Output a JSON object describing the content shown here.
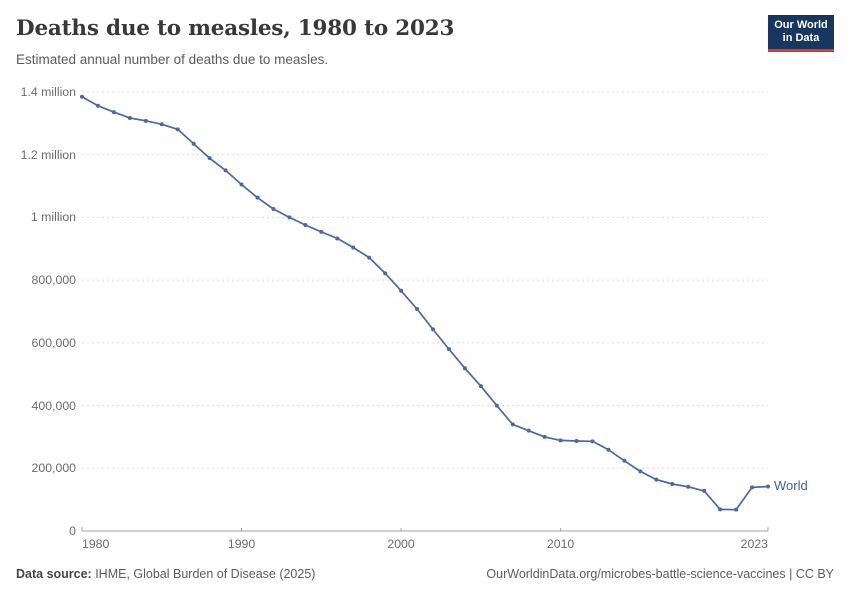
{
  "header": {
    "title": "Deaths due to measles, 1980 to 2023",
    "subtitle": "Estimated annual number of deaths due to measles."
  },
  "logo": {
    "line1": "Our World",
    "line2": "in Data"
  },
  "footer": {
    "source_label": "Data source:",
    "source_value": " IHME, Global Burden of Disease (2025)",
    "credit": "OurWorldinData.org/microbes-battle-science-vaccines | CC BY"
  },
  "colors": {
    "line": "#4868a8",
    "marker": "#4868a8",
    "series_label": "#3d649c",
    "grid": "#dbdbdb",
    "axis": "#a2a2a2",
    "tick_text": "#6b6b6b",
    "logo_bg": "#18375f",
    "logo_accent": "#e5372c"
  },
  "chart_data": {
    "type": "line",
    "title": "Deaths due to measles, 1980 to 2023",
    "subtitle": "Estimated annual number of deaths due to measles.",
    "grid": "horizontal-dashed",
    "legend_position": "end-of-line",
    "xlim": [
      1980,
      2023
    ],
    "ylim": [
      0,
      1400000
    ],
    "x": [
      1980,
      1981,
      1982,
      1983,
      1984,
      1985,
      1986,
      1987,
      1988,
      1989,
      1990,
      1991,
      1992,
      1993,
      1994,
      1995,
      1996,
      1997,
      1998,
      1999,
      2000,
      2001,
      2002,
      2003,
      2004,
      2005,
      2006,
      2007,
      2008,
      2009,
      2010,
      2011,
      2012,
      2013,
      2014,
      2015,
      2016,
      2017,
      2018,
      2019,
      2020,
      2021,
      2022,
      2023
    ],
    "series": [
      {
        "name": "World",
        "values": [
          1385000,
          1356000,
          1336000,
          1317000,
          1308000,
          1297000,
          1281000,
          1235000,
          1189000,
          1150000,
          1105000,
          1063000,
          1027000,
          1000000,
          976000,
          954000,
          933000,
          904000,
          872000,
          822000,
          766000,
          708000,
          643000,
          580000,
          519000,
          462000,
          400000,
          340000,
          320000,
          300000,
          289000,
          287000,
          286000,
          259000,
          224000,
          190000,
          164000,
          150000,
          141000,
          128000,
          69000,
          68000,
          139000,
          142000
        ]
      }
    ],
    "yticks": [
      {
        "value": 0,
        "label": "0"
      },
      {
        "value": 200000,
        "label": "200,000"
      },
      {
        "value": 400000,
        "label": "400,000"
      },
      {
        "value": 600000,
        "label": "600,000"
      },
      {
        "value": 800000,
        "label": "800,000"
      },
      {
        "value": 1000000,
        "label": "1 million"
      },
      {
        "value": 1200000,
        "label": "1.2 million"
      },
      {
        "value": 1400000,
        "label": "1.4 million"
      }
    ],
    "xticks": [
      {
        "value": 1980,
        "label": "1980",
        "anchor": "start",
        "tick": false
      },
      {
        "value": 1990,
        "label": "1990",
        "anchor": "middle",
        "tick": true
      },
      {
        "value": 2000,
        "label": "2000",
        "anchor": "middle",
        "tick": true
      },
      {
        "value": 2010,
        "label": "2010",
        "anchor": "middle",
        "tick": true
      },
      {
        "value": 2023,
        "label": "2023",
        "anchor": "end",
        "tick": false
      }
    ]
  }
}
